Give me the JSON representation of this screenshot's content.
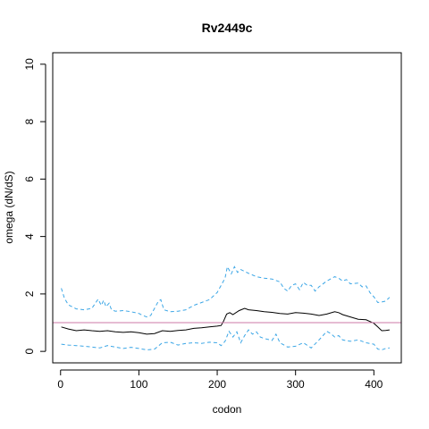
{
  "chart_data": {
    "type": "line",
    "title": "Rv2449c",
    "xlabel": "codon",
    "ylabel": "omega (dN/dS)",
    "xlim": [
      -10,
      435
    ],
    "ylim": [
      -0.4,
      10.4
    ],
    "x_ticks": [
      0,
      100,
      200,
      300,
      400
    ],
    "y_ticks": [
      0,
      2,
      4,
      6,
      8,
      10
    ],
    "grid": false,
    "legend": "none",
    "reference_line": {
      "y": 1,
      "color": "#cc79a7"
    },
    "series": [
      {
        "role": "upper",
        "color": "#3ba6e6",
        "dash": "dashed",
        "points": [
          [
            1,
            2.2
          ],
          [
            5,
            1.85
          ],
          [
            10,
            1.62
          ],
          [
            20,
            1.48
          ],
          [
            30,
            1.45
          ],
          [
            40,
            1.5
          ],
          [
            45,
            1.7
          ],
          [
            48,
            1.82
          ],
          [
            52,
            1.6
          ],
          [
            55,
            1.78
          ],
          [
            58,
            1.55
          ],
          [
            62,
            1.68
          ],
          [
            65,
            1.45
          ],
          [
            70,
            1.4
          ],
          [
            80,
            1.42
          ],
          [
            90,
            1.38
          ],
          [
            100,
            1.32
          ],
          [
            105,
            1.25
          ],
          [
            110,
            1.2
          ],
          [
            115,
            1.25
          ],
          [
            120,
            1.5
          ],
          [
            125,
            1.75
          ],
          [
            128,
            1.8
          ],
          [
            132,
            1.45
          ],
          [
            140,
            1.38
          ],
          [
            150,
            1.4
          ],
          [
            160,
            1.45
          ],
          [
            170,
            1.6
          ],
          [
            180,
            1.7
          ],
          [
            190,
            1.8
          ],
          [
            200,
            2.05
          ],
          [
            205,
            2.3
          ],
          [
            210,
            2.55
          ],
          [
            213,
            2.95
          ],
          [
            218,
            2.7
          ],
          [
            222,
            2.95
          ],
          [
            226,
            2.75
          ],
          [
            230,
            2.85
          ],
          [
            240,
            2.72
          ],
          [
            250,
            2.6
          ],
          [
            260,
            2.55
          ],
          [
            270,
            2.52
          ],
          [
            280,
            2.42
          ],
          [
            285,
            2.2
          ],
          [
            290,
            2.1
          ],
          [
            295,
            2.3
          ],
          [
            300,
            2.35
          ],
          [
            305,
            2.15
          ],
          [
            310,
            2.4
          ],
          [
            315,
            2.3
          ],
          [
            320,
            2.3
          ],
          [
            325,
            2.1
          ],
          [
            330,
            2.25
          ],
          [
            340,
            2.45
          ],
          [
            350,
            2.6
          ],
          [
            355,
            2.55
          ],
          [
            360,
            2.45
          ],
          [
            365,
            2.5
          ],
          [
            370,
            2.35
          ],
          [
            380,
            2.38
          ],
          [
            385,
            2.25
          ],
          [
            390,
            2.28
          ],
          [
            395,
            2.05
          ],
          [
            400,
            1.9
          ],
          [
            405,
            1.7
          ],
          [
            410,
            1.72
          ],
          [
            415,
            1.75
          ],
          [
            420,
            1.88
          ]
        ]
      },
      {
        "role": "estimate",
        "color": "#000000",
        "dash": "solid",
        "points": [
          [
            1,
            0.85
          ],
          [
            10,
            0.78
          ],
          [
            20,
            0.72
          ],
          [
            30,
            0.75
          ],
          [
            40,
            0.72
          ],
          [
            50,
            0.7
          ],
          [
            60,
            0.72
          ],
          [
            70,
            0.68
          ],
          [
            80,
            0.66
          ],
          [
            90,
            0.68
          ],
          [
            100,
            0.65
          ],
          [
            110,
            0.6
          ],
          [
            120,
            0.62
          ],
          [
            130,
            0.72
          ],
          [
            140,
            0.7
          ],
          [
            150,
            0.73
          ],
          [
            160,
            0.75
          ],
          [
            170,
            0.8
          ],
          [
            180,
            0.82
          ],
          [
            190,
            0.85
          ],
          [
            200,
            0.88
          ],
          [
            205,
            0.9
          ],
          [
            208,
            1.05
          ],
          [
            212,
            1.3
          ],
          [
            216,
            1.35
          ],
          [
            220,
            1.28
          ],
          [
            228,
            1.42
          ],
          [
            235,
            1.5
          ],
          [
            240,
            1.45
          ],
          [
            250,
            1.42
          ],
          [
            260,
            1.38
          ],
          [
            270,
            1.36
          ],
          [
            280,
            1.32
          ],
          [
            290,
            1.3
          ],
          [
            300,
            1.35
          ],
          [
            310,
            1.33
          ],
          [
            320,
            1.3
          ],
          [
            330,
            1.25
          ],
          [
            340,
            1.3
          ],
          [
            350,
            1.38
          ],
          [
            355,
            1.35
          ],
          [
            360,
            1.28
          ],
          [
            370,
            1.2
          ],
          [
            380,
            1.12
          ],
          [
            390,
            1.1
          ],
          [
            400,
            0.98
          ],
          [
            405,
            0.85
          ],
          [
            410,
            0.72
          ],
          [
            415,
            0.73
          ],
          [
            420,
            0.75
          ]
        ]
      },
      {
        "role": "lower",
        "color": "#3ba6e6",
        "dash": "dashed",
        "points": [
          [
            1,
            0.25
          ],
          [
            10,
            0.22
          ],
          [
            20,
            0.2
          ],
          [
            30,
            0.18
          ],
          [
            40,
            0.15
          ],
          [
            50,
            0.12
          ],
          [
            60,
            0.2
          ],
          [
            70,
            0.15
          ],
          [
            80,
            0.1
          ],
          [
            90,
            0.14
          ],
          [
            100,
            0.1
          ],
          [
            110,
            0.05
          ],
          [
            120,
            0.08
          ],
          [
            130,
            0.3
          ],
          [
            140,
            0.32
          ],
          [
            150,
            0.22
          ],
          [
            160,
            0.28
          ],
          [
            170,
            0.3
          ],
          [
            180,
            0.28
          ],
          [
            190,
            0.32
          ],
          [
            200,
            0.3
          ],
          [
            205,
            0.2
          ],
          [
            210,
            0.35
          ],
          [
            215,
            0.7
          ],
          [
            220,
            0.5
          ],
          [
            225,
            0.68
          ],
          [
            230,
            0.3
          ],
          [
            235,
            0.55
          ],
          [
            240,
            0.75
          ],
          [
            245,
            0.6
          ],
          [
            250,
            0.68
          ],
          [
            255,
            0.5
          ],
          [
            260,
            0.45
          ],
          [
            270,
            0.38
          ],
          [
            275,
            0.6
          ],
          [
            280,
            0.3
          ],
          [
            290,
            0.15
          ],
          [
            300,
            0.18
          ],
          [
            310,
            0.3
          ],
          [
            320,
            0.12
          ],
          [
            330,
            0.4
          ],
          [
            340,
            0.7
          ],
          [
            345,
            0.62
          ],
          [
            350,
            0.5
          ],
          [
            355,
            0.55
          ],
          [
            360,
            0.4
          ],
          [
            370,
            0.35
          ],
          [
            380,
            0.4
          ],
          [
            390,
            0.3
          ],
          [
            400,
            0.25
          ],
          [
            405,
            0.08
          ],
          [
            410,
            0.05
          ],
          [
            415,
            0.1
          ],
          [
            420,
            0.12
          ]
        ]
      }
    ]
  }
}
